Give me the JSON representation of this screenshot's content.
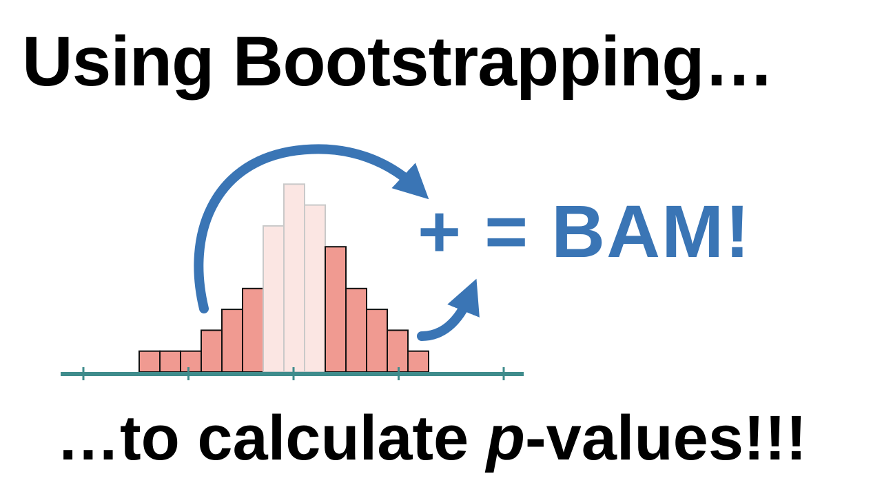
{
  "headline": "Using Bootstrapping…",
  "result": "+ = BAM!",
  "footer": {
    "before": "…to calculate ",
    "italic": "p",
    "after": "-values!!!"
  },
  "chart_data": {
    "type": "bar",
    "description_note": "",
    "bin_counts": [
      1,
      1,
      1,
      2,
      3,
      4,
      7,
      9,
      8,
      6,
      4,
      3,
      2,
      1
    ],
    "highlighted_bins": [
      6,
      7,
      8
    ],
    "x_ticks": 5
  },
  "colors": {
    "bar_fill": "#f09a91",
    "bar_light_fill": "#fbe6e3",
    "bar_stroke": "#111111",
    "bar_light_stroke": "#c9c9c9",
    "axis": "#3f8c8c",
    "arrow": "#3a75b5"
  },
  "icons": {
    "big_arrow": "curved-arrow-icon",
    "small_arrow": "curved-arrow-icon"
  }
}
